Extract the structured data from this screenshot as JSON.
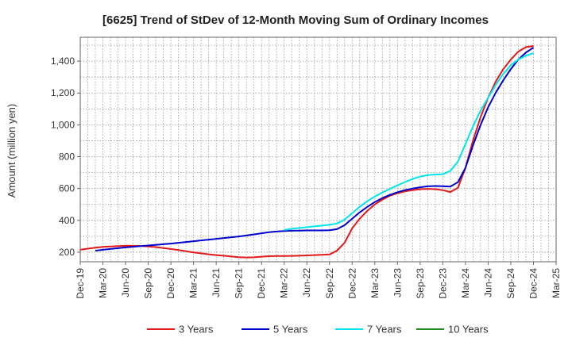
{
  "chart_data": {
    "type": "line",
    "title": "[6625]  Trend of StDev of 12-Month Moving Sum of Ordinary Incomes",
    "xlabel": "",
    "ylabel": "Amount (million yen)",
    "ylim": [
      140,
      1550
    ],
    "yticks": [
      200,
      400,
      600,
      800,
      1000,
      1200,
      1400
    ],
    "ytick_labels": [
      "200",
      "400",
      "600",
      "800",
      "1,000",
      "1,200",
      "1,400"
    ],
    "grid": true,
    "legend_position": "bottom",
    "categories": [
      "Dec-19",
      "Mar-20",
      "Jun-20",
      "Sep-20",
      "Dec-20",
      "Mar-21",
      "Jun-21",
      "Sep-21",
      "Dec-21",
      "Mar-22",
      "Jun-22",
      "Sep-22",
      "Dec-22",
      "Mar-23",
      "Jun-23",
      "Sep-23",
      "Dec-23",
      "Mar-24",
      "Jun-24",
      "Sep-24",
      "Dec-24",
      "Mar-25"
    ],
    "series": [
      {
        "name": "3 Years",
        "color": "#e31a1c",
        "x": [
          0,
          0.33,
          0.67,
          1,
          1.33,
          1.67,
          2,
          2.33,
          2.67,
          3,
          3.33,
          3.67,
          4,
          4.33,
          4.67,
          5,
          5.33,
          5.67,
          6,
          6.33,
          6.67,
          7,
          7.33,
          7.67,
          8,
          8.33,
          8.67,
          9,
          9.33,
          9.67,
          10,
          10.33,
          10.67,
          11,
          11.33,
          11.67,
          12,
          12.33,
          12.67,
          13,
          13.33,
          13.67,
          14,
          14.33,
          14.67,
          15,
          15.33,
          15.67,
          16,
          16.33,
          16.67,
          17,
          17.33,
          17.67,
          18,
          18.33,
          18.67,
          19,
          19.33,
          19.67,
          20
        ],
        "values": [
          215,
          222,
          228,
          233,
          236,
          238,
          240,
          240,
          239,
          236,
          232,
          226,
          220,
          213,
          206,
          199,
          193,
          187,
          182,
          178,
          173,
          169,
          167,
          168,
          172,
          175,
          176,
          176,
          177,
          178,
          180,
          182,
          184,
          186,
          210,
          260,
          350,
          410,
          460,
          500,
          530,
          555,
          570,
          582,
          590,
          596,
          598,
          596,
          590,
          578,
          605,
          730,
          900,
          1050,
          1170,
          1270,
          1350,
          1410,
          1460,
          1488,
          1495
        ]
      },
      {
        "name": "5 Years",
        "color": "#0000cc",
        "x": [
          0.67,
          1,
          1.33,
          1.67,
          2,
          2.33,
          2.67,
          3,
          3.33,
          3.67,
          4,
          4.33,
          4.67,
          5,
          5.33,
          5.67,
          6,
          6.33,
          6.67,
          7,
          7.33,
          7.67,
          8,
          8.33,
          8.67,
          9,
          9.33,
          9.67,
          10,
          10.33,
          10.67,
          11,
          11.33,
          11.67,
          12,
          12.33,
          12.67,
          13,
          13.33,
          13.67,
          14,
          14.33,
          14.67,
          15,
          15.33,
          15.67,
          16,
          16.33,
          16.67,
          17,
          17.33,
          17.67,
          18,
          18.33,
          18.67,
          19,
          19.33,
          19.67,
          20
        ],
        "values": [
          210,
          215,
          220,
          225,
          230,
          234,
          238,
          242,
          246,
          250,
          254,
          259,
          264,
          269,
          274,
          279,
          284,
          289,
          294,
          299,
          305,
          312,
          319,
          326,
          330,
          333,
          335,
          336,
          337,
          337,
          337,
          338,
          345,
          370,
          410,
          450,
          485,
          515,
          540,
          560,
          577,
          590,
          600,
          608,
          614,
          616,
          615,
          612,
          640,
          730,
          870,
          1000,
          1110,
          1200,
          1280,
          1350,
          1410,
          1455,
          1485
        ]
      },
      {
        "name": "7 Years",
        "color": "#00e5ee",
        "x": [
          9,
          9.33,
          9.67,
          10,
          10.33,
          10.67,
          11,
          11.33,
          11.67,
          12,
          12.33,
          12.67,
          13,
          13.33,
          13.67,
          14,
          14.33,
          14.67,
          15,
          15.33,
          15.67,
          16,
          16.33,
          16.67,
          17,
          17.33,
          17.67,
          18,
          18.33,
          18.67,
          19,
          19.33,
          19.67,
          20
        ],
        "values": [
          340,
          347,
          352,
          357,
          362,
          367,
          372,
          380,
          405,
          445,
          485,
          520,
          550,
          575,
          598,
          620,
          640,
          660,
          675,
          684,
          688,
          690,
          710,
          770,
          880,
          990,
          1090,
          1170,
          1250,
          1320,
          1375,
          1410,
          1435,
          1450
        ]
      },
      {
        "name": "10 Years",
        "color": "#228b22",
        "x": [],
        "values": []
      }
    ]
  }
}
